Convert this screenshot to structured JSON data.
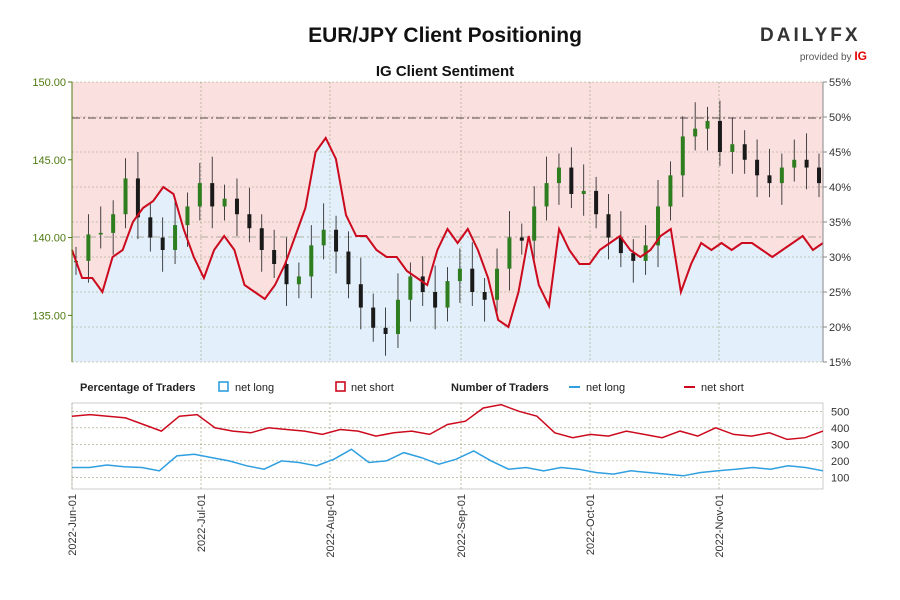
{
  "title": "EUR/JPY Client Positioning",
  "subtitle": "IG Client Sentiment",
  "brand": {
    "name": "DAILYFX",
    "provided": "provided by",
    "ig": "IG"
  },
  "colors": {
    "long_fill": "#e3f0fb",
    "short_fill": "#fbe0e0",
    "short_line": "#cc0a1e",
    "long_line": "#2f9fe0",
    "candle": "#2e7d1f",
    "price_axis": "#4f7a10"
  },
  "legend": {
    "pct_title": "Percentage of Traders",
    "pct_long": "net long",
    "pct_short": "net short",
    "num_title": "Number of Traders",
    "num_long": "net long",
    "num_short": "net short"
  },
  "chart_data": [
    {
      "type": "candlestick",
      "title": "EUR/JPY Client Positioning",
      "price_axis": {
        "ticks": [
          "135.00",
          "140.00",
          "145.00",
          "150.00"
        ],
        "range": [
          132,
          150
        ]
      },
      "pct_axis": {
        "ticks": [
          "15%",
          "20%",
          "25%",
          "30%",
          "35%",
          "40%",
          "45%",
          "50%",
          "55%"
        ],
        "range": [
          15,
          55
        ]
      },
      "x_ticks": [
        "2022-Jun-01",
        "2022-Jul-01",
        "2022-Aug-01",
        "2022-Sep-01",
        "2022-Oct-01",
        "2022-Nov-01"
      ],
      "ohlc_close_approx": [
        138.5,
        140.2,
        140.3,
        141.5,
        143.8,
        141.3,
        140.0,
        139.2,
        140.8,
        142.0,
        143.5,
        142.0,
        142.5,
        141.5,
        140.6,
        139.2,
        138.3,
        137.0,
        137.5,
        139.5,
        140.5,
        139.1,
        137.0,
        135.5,
        134.2,
        133.8,
        136.0,
        137.5,
        136.5,
        135.5,
        137.2,
        138.0,
        136.5,
        136.0,
        138.0,
        140.0,
        139.8,
        142.0,
        143.5,
        144.5,
        142.8,
        143.0,
        141.5,
        140.0,
        139.0,
        138.5,
        139.5,
        142.0,
        144.0,
        146.5,
        147.0,
        147.5,
        145.5,
        146.0,
        145.0,
        144.0,
        143.5,
        144.5,
        145.0,
        144.5,
        143.5
      ],
      "net_long_pct": [
        31,
        27,
        27,
        25,
        30,
        31,
        35,
        37,
        38,
        40,
        39,
        34,
        30,
        27,
        31,
        33,
        31,
        26,
        25,
        24,
        26,
        29,
        33,
        37,
        45,
        47,
        44,
        36,
        33,
        33,
        31,
        30,
        30,
        28,
        27,
        26,
        31,
        34,
        32,
        34,
        31,
        27,
        21,
        20,
        25,
        33,
        26,
        23,
        34,
        31,
        29,
        29,
        31,
        32,
        33,
        31,
        30,
        31,
        33,
        34,
        25,
        29,
        32,
        31,
        32,
        31,
        32,
        32,
        31,
        30,
        31,
        32,
        33,
        31,
        32
      ],
      "net_long_count": [
        160,
        160,
        175,
        165,
        160,
        140,
        230,
        240,
        220,
        200,
        170,
        150,
        200,
        190,
        170,
        210,
        270,
        190,
        200,
        250,
        220,
        180,
        210,
        260,
        200,
        150,
        160,
        140,
        160,
        150,
        130,
        120,
        140,
        130,
        120,
        110,
        130,
        140,
        150,
        160,
        150,
        170,
        160,
        140
      ],
      "net_short_count": [
        470,
        480,
        470,
        460,
        420,
        380,
        470,
        480,
        400,
        380,
        370,
        400,
        390,
        380,
        360,
        390,
        380,
        350,
        370,
        380,
        360,
        420,
        440,
        520,
        540,
        500,
        470,
        370,
        340,
        360,
        350,
        380,
        360,
        340,
        380,
        350,
        400,
        360,
        350,
        370,
        330,
        340,
        380
      ]
    }
  ]
}
